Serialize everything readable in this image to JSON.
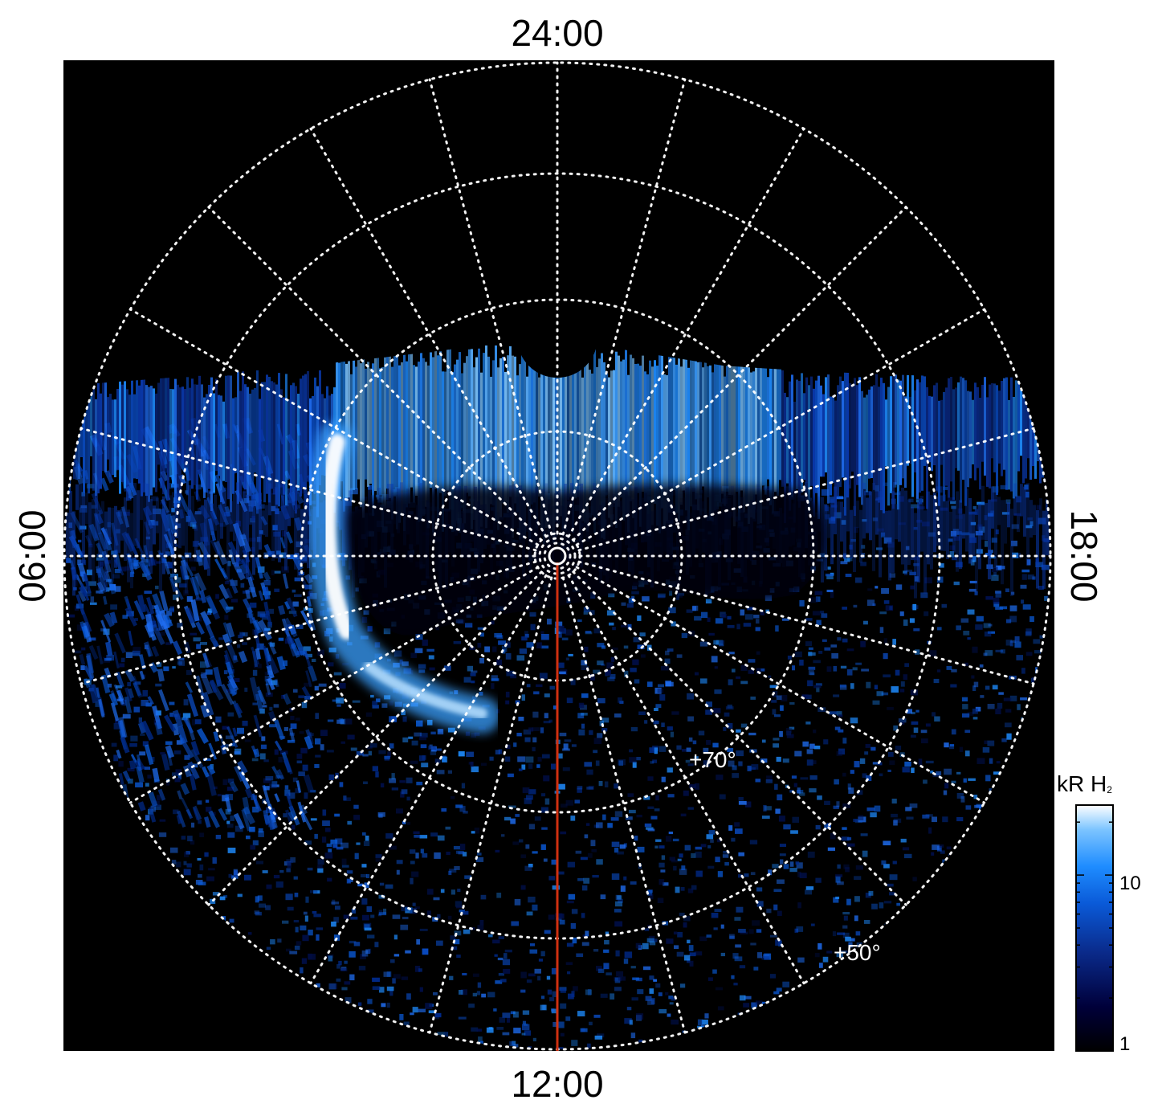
{
  "figure": {
    "local_time_labels": {
      "top": "24:00",
      "bottom": "12:00",
      "left": "06:00",
      "right": "18:00"
    },
    "latitude_labels": [
      "+70°",
      "+50°"
    ],
    "colorbar": {
      "title": "kR H",
      "title_sub": "2",
      "tick_labels": [
        "10",
        "1"
      ],
      "scale": "log",
      "colors": [
        "#000000",
        "#00003a",
        "#0a2a8a",
        "#0a5ad8",
        "#1e8cff",
        "#7cc4ff",
        "#ffffff"
      ]
    },
    "colors": {
      "background": "#000000",
      "grid": "#ffffff",
      "meridian_marker": "#d03010",
      "aurora_blue": "#1e8cff",
      "aurora_bright": "#ffffff"
    }
  }
}
